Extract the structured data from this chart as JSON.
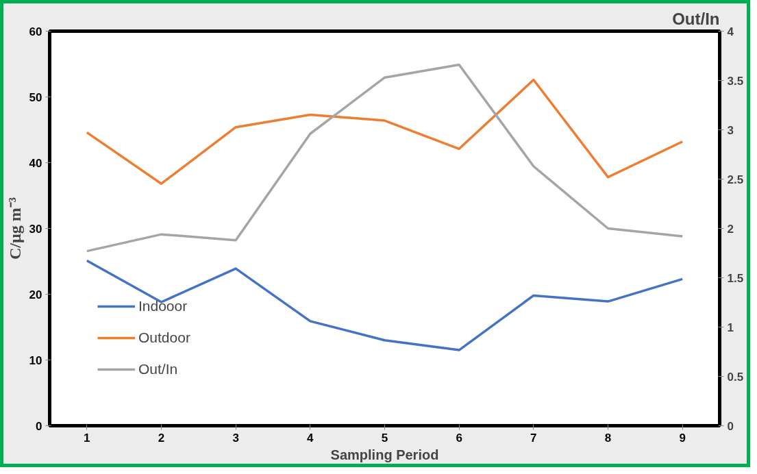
{
  "chart_data": {
    "type": "line",
    "xlabel": "Sampling Period",
    "ylabel": "C/µg m⁻³",
    "y2label": "Out/In",
    "categories": [
      "1",
      "2",
      "3",
      "4",
      "5",
      "6",
      "7",
      "8",
      "9"
    ],
    "series": [
      {
        "name": "Indooor",
        "color": "#4472c4",
        "values": [
          25.1,
          18.8,
          23.9,
          15.9,
          13.0,
          11.5,
          19.8,
          18.9,
          22.3
        ]
      },
      {
        "name": "Outdoor",
        "color": "#ed7d31",
        "values": [
          44.6,
          36.8,
          45.4,
          47.3,
          46.4,
          42.1,
          52.6,
          37.8,
          43.2
        ]
      },
      {
        "name": "Out/In",
        "color": "#a5a5a5",
        "axis": "y2",
        "values": [
          1.77,
          1.94,
          1.88,
          2.96,
          3.53,
          3.66,
          2.63,
          2.0,
          1.92
        ]
      }
    ],
    "ylim": [
      0,
      60
    ],
    "yticks": [
      0,
      10,
      20,
      30,
      40,
      50,
      60
    ],
    "y2lim": [
      0,
      4
    ],
    "y2ticks": [
      0,
      0.5,
      1,
      1.5,
      2,
      2.5,
      3,
      3.5,
      4
    ],
    "grid": false,
    "legend": "bottom left",
    "marker": "none",
    "line_style": "solid"
  }
}
